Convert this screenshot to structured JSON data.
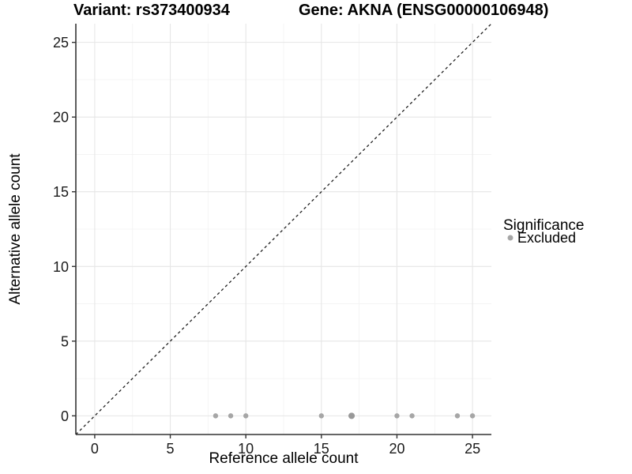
{
  "chart_data": {
    "type": "scatter",
    "title_left": "Variant: rs373400934",
    "title_right": "Gene: AKNA (ENSG00000106948)",
    "xlabel": "Reference allele count",
    "ylabel": "Alternative allele count",
    "xlim": [
      -1.25,
      26.25
    ],
    "ylim": [
      -1.25,
      26.25
    ],
    "x_ticks": [
      0,
      5,
      10,
      15,
      20,
      25
    ],
    "y_ticks": [
      0,
      5,
      10,
      15,
      20,
      25
    ],
    "x_minor_ticks": [
      2.5,
      7.5,
      12.5,
      17.5,
      22.5
    ],
    "y_minor_ticks": [
      2.5,
      7.5,
      12.5,
      17.5,
      22.5
    ],
    "grid": "major+minor",
    "identity_line": {
      "style": "dashed",
      "from": [
        -1.25,
        -1.25
      ],
      "to": [
        26.25,
        26.25
      ]
    },
    "series": [
      {
        "name": "Excluded",
        "color": "#a6a6a6",
        "points": [
          {
            "x": 8,
            "y": 0
          },
          {
            "x": 9,
            "y": 0
          },
          {
            "x": 10,
            "y": 0
          },
          {
            "x": 15,
            "y": 0
          },
          {
            "x": 17,
            "y": 0,
            "overlap": true
          },
          {
            "x": 20,
            "y": 0
          },
          {
            "x": 21,
            "y": 0
          },
          {
            "x": 24,
            "y": 0
          },
          {
            "x": 25,
            "y": 0
          }
        ]
      }
    ],
    "legend": {
      "title": "Significance",
      "position": "right",
      "entries": [
        {
          "label": "Excluded",
          "color": "#a6a6a6",
          "marker": "circle"
        }
      ]
    },
    "colors": {
      "background": "#ffffff",
      "grid_major": "#e6e6e6",
      "grid_minor": "#f2f2f2",
      "axis_line": "#333333",
      "tick_mark": "#333333",
      "dashed_line": "#1f1f1f",
      "point": "#a6a6a6",
      "point_overlap": "#989898"
    }
  }
}
